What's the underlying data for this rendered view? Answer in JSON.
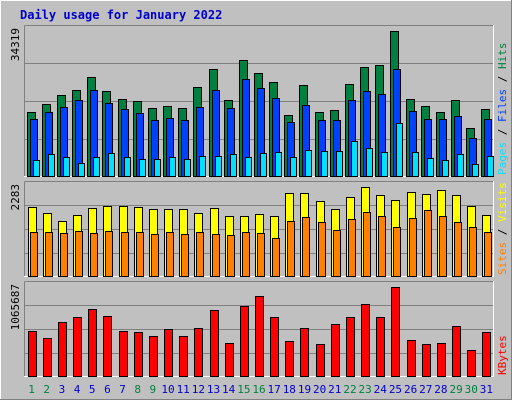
{
  "colors": {
    "background": "#c0c0c0",
    "title": "#0000cc",
    "hits": "#008040",
    "files": "#0040ff",
    "pages": "#00e0ff",
    "visits": "#ffff00",
    "sites": "#ff8000",
    "kbytes": "#ff0000",
    "weekend_label": "#008040",
    "weekday_label": "#0000cc"
  },
  "chart_data": [
    {
      "type": "bar",
      "title": "Daily usage for January 2022",
      "ymax_label": "34319",
      "legend": [
        "Pages",
        "Files",
        "Hits"
      ],
      "legend_placement": "right",
      "categories": [
        "1",
        "2",
        "3",
        "4",
        "5",
        "6",
        "7",
        "8",
        "9",
        "10",
        "11",
        "12",
        "13",
        "14",
        "15",
        "16",
        "17",
        "18",
        "19",
        "20",
        "21",
        "22",
        "23",
        "24",
        "25",
        "26",
        "27",
        "28",
        "29",
        "30",
        "31"
      ],
      "weekend_days": [
        1,
        2,
        8,
        9,
        15,
        16,
        22,
        23,
        29,
        30
      ],
      "ylim": [
        0,
        34319
      ],
      "series": [
        {
          "name": "Hits",
          "values": [
            15220,
            17200,
            19200,
            20500,
            23400,
            20200,
            18400,
            17850,
            16300,
            16750,
            16300,
            21100,
            25300,
            18200,
            27400,
            24400,
            22300,
            14600,
            21600,
            15250,
            15650,
            21800,
            25750,
            26400,
            34319,
            18300,
            16650,
            15300,
            18150,
            11600,
            15900
          ]
        },
        {
          "name": "Files",
          "values": [
            13550,
            15200,
            16400,
            18100,
            20500,
            17450,
            16100,
            15150,
            13450,
            13800,
            13500,
            16550,
            20550,
            16200,
            23150,
            20850,
            18600,
            12950,
            17000,
            13450,
            13350,
            18100,
            20150,
            19450,
            25400,
            15450,
            13600,
            13650,
            14300,
            9100,
            13550
          ]
        },
        {
          "name": "Pages",
          "values": [
            4050,
            5300,
            4700,
            3200,
            4700,
            5700,
            4650,
            4200,
            4300,
            4750,
            4250,
            4950,
            5050,
            5500,
            4750,
            5600,
            5950,
            4750,
            6250,
            6150,
            6200,
            8500,
            6900,
            5900,
            12800,
            5800,
            4550,
            4100,
            5500,
            3050,
            4900
          ]
        }
      ]
    },
    {
      "type": "bar",
      "ymax_label": "2283",
      "legend": [
        "Sites",
        "Visits"
      ],
      "legend_placement": "right",
      "categories": [
        "1",
        "2",
        "3",
        "4",
        "5",
        "6",
        "7",
        "8",
        "9",
        "10",
        "11",
        "12",
        "13",
        "14",
        "15",
        "16",
        "17",
        "18",
        "19",
        "20",
        "21",
        "22",
        "23",
        "24",
        "25",
        "26",
        "27",
        "28",
        "29",
        "30",
        "31"
      ],
      "ylim": [
        0,
        2283
      ],
      "series": [
        {
          "name": "Visits",
          "values": [
            1770,
            1630,
            1410,
            1580,
            1750,
            1790,
            1790,
            1780,
            1730,
            1730,
            1720,
            1620,
            1740,
            1550,
            1560,
            1590,
            1540,
            2130,
            2140,
            1920,
            1730,
            2040,
            2283,
            2070,
            1960,
            2160,
            2110,
            2200,
            2080,
            1790,
            1580
          ]
        },
        {
          "name": "Sites",
          "values": [
            1140,
            1140,
            1110,
            1170,
            1120,
            1160,
            1130,
            1130,
            1080,
            1130,
            1090,
            1130,
            1100,
            1070,
            1130,
            1120,
            1000,
            1420,
            1510,
            1390,
            1200,
            1470,
            1640,
            1560,
            1280,
            1490,
            1690,
            1560,
            1390,
            1270,
            1130
          ]
        }
      ]
    },
    {
      "type": "bar",
      "ymax_label": "1065687",
      "legend": [
        "KBytes"
      ],
      "legend_placement": "right",
      "categories": [
        "1",
        "2",
        "3",
        "4",
        "5",
        "6",
        "7",
        "8",
        "9",
        "10",
        "11",
        "12",
        "13",
        "14",
        "15",
        "16",
        "17",
        "18",
        "19",
        "20",
        "21",
        "22",
        "23",
        "24",
        "25",
        "26",
        "27",
        "28",
        "29",
        "30",
        "31"
      ],
      "ylim": [
        0,
        1065687
      ],
      "series": [
        {
          "name": "KBytes",
          "values": [
            545000,
            460000,
            652000,
            709000,
            806000,
            720000,
            546000,
            531000,
            485000,
            570000,
            483000,
            581000,
            791000,
            402000,
            839000,
            962000,
            711000,
            426000,
            577000,
            392000,
            626000,
            712000,
            860000,
            710000,
            1065687,
            440000,
            393000,
            403000,
            603000,
            314000,
            527000
          ]
        }
      ]
    }
  ]
}
